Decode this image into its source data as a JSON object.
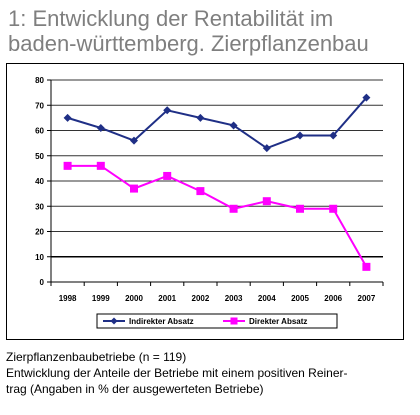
{
  "title": {
    "line1": "1: Entwicklung der Rentabilität im",
    "line2": "baden-württemberg. Zierpflanzenbau"
  },
  "chart_data": {
    "type": "line",
    "categories": [
      "1998",
      "1999",
      "2000",
      "2001",
      "2002",
      "2003",
      "2004",
      "2005",
      "2006",
      "2007"
    ],
    "ylim": [
      0,
      80
    ],
    "yticks": [
      0,
      10,
      20,
      30,
      40,
      50,
      60,
      70,
      80
    ],
    "grid": true,
    "highlight_gridline": 10,
    "legend_position": "bottom",
    "series": [
      {
        "name": "Indirekter Absatz",
        "color": "#1f2f86",
        "marker": "diamond",
        "values": [
          65,
          61,
          56,
          68,
          65,
          62,
          53,
          58,
          58,
          73
        ]
      },
      {
        "name": "Direkter Absatz",
        "color": "#ff00ff",
        "marker": "square",
        "values": [
          46,
          46,
          37,
          42,
          36,
          29,
          32,
          29,
          29,
          6
        ]
      }
    ]
  },
  "caption": {
    "line1": "Zierpflanzenbaubetriebe (n = 119)",
    "line2": "Entwicklung der Anteile der Betriebe mit einem positiven Reiner-",
    "line3": "trag (Angaben in % der ausgewerteten Betriebe)"
  }
}
